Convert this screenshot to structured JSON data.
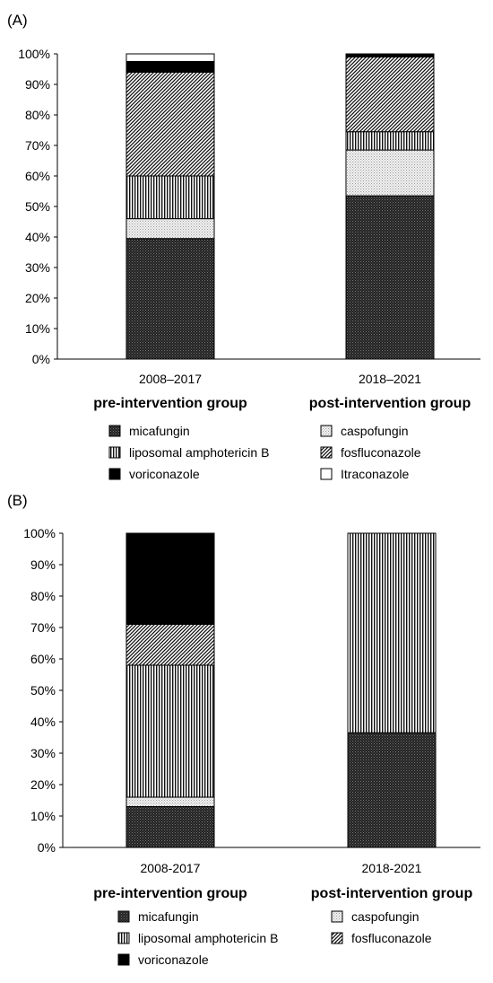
{
  "chart_data": [
    {
      "panel_label": "(A)",
      "type": "bar",
      "stacked": true,
      "ylim": [
        0,
        100
      ],
      "y_ticks": [
        "0%",
        "10%",
        "20%",
        "30%",
        "40%",
        "50%",
        "60%",
        "70%",
        "80%",
        "90%",
        "100%"
      ],
      "categories": [
        {
          "period": "2008‒2017",
          "group": "pre-intervention group"
        },
        {
          "period": "2018‒2021",
          "group": "post-intervention group"
        }
      ],
      "series": [
        {
          "name": "micafungin",
          "pattern": "dark-dots",
          "values": [
            39.5,
            53.5
          ]
        },
        {
          "name": "caspofungin",
          "pattern": "light-dots",
          "values": [
            6.5,
            15
          ]
        },
        {
          "name": "liposomal amphotericin B",
          "pattern": "vertical",
          "values": [
            14,
            6
          ]
        },
        {
          "name": "fosfluconazole",
          "pattern": "diagonal",
          "values": [
            34,
            24.5
          ]
        },
        {
          "name": "voriconazole",
          "pattern": "solid-black",
          "values": [
            3.5,
            1
          ]
        },
        {
          "name": "Itraconazole",
          "pattern": "white",
          "values": [
            2.5,
            0
          ]
        }
      ],
      "legend": [
        {
          "name": "micafungin",
          "pattern": "dark-dots"
        },
        {
          "name": "caspofungin",
          "pattern": "light-dots"
        },
        {
          "name": "liposomal amphotericin B",
          "pattern": "vertical"
        },
        {
          "name": "fosfluconazole",
          "pattern": "diagonal"
        },
        {
          "name": "voriconazole",
          "pattern": "solid-black"
        },
        {
          "name": "Itraconazole",
          "pattern": "white"
        }
      ]
    },
    {
      "panel_label": "(B)",
      "type": "bar",
      "stacked": true,
      "ylim": [
        0,
        100
      ],
      "y_ticks": [
        "0%",
        "10%",
        "20%",
        "30%",
        "40%",
        "50%",
        "60%",
        "70%",
        "80%",
        "90%",
        "100%"
      ],
      "categories": [
        {
          "period": "2008-2017",
          "group": "pre-intervention group"
        },
        {
          "period": "2018-2021",
          "group": "post-intervention group"
        }
      ],
      "series": [
        {
          "name": "micafungin",
          "pattern": "dark-dots",
          "values": [
            13,
            36.5
          ]
        },
        {
          "name": "caspofungin",
          "pattern": "light-dots",
          "values": [
            3,
            0
          ]
        },
        {
          "name": "liposomal amphotericin B",
          "pattern": "vertical",
          "values": [
            42,
            63.5
          ]
        },
        {
          "name": "fosfluconazole",
          "pattern": "diagonal",
          "values": [
            13,
            0
          ]
        },
        {
          "name": "voriconazole",
          "pattern": "solid-black",
          "values": [
            29,
            0
          ]
        }
      ],
      "legend": [
        {
          "name": "micafungin",
          "pattern": "dark-dots"
        },
        {
          "name": "caspofungin",
          "pattern": "light-dots"
        },
        {
          "name": "liposomal amphotericin B",
          "pattern": "vertical"
        },
        {
          "name": "fosfluconazole",
          "pattern": "diagonal"
        },
        {
          "name": "voriconazole",
          "pattern": "solid-black"
        }
      ]
    }
  ]
}
